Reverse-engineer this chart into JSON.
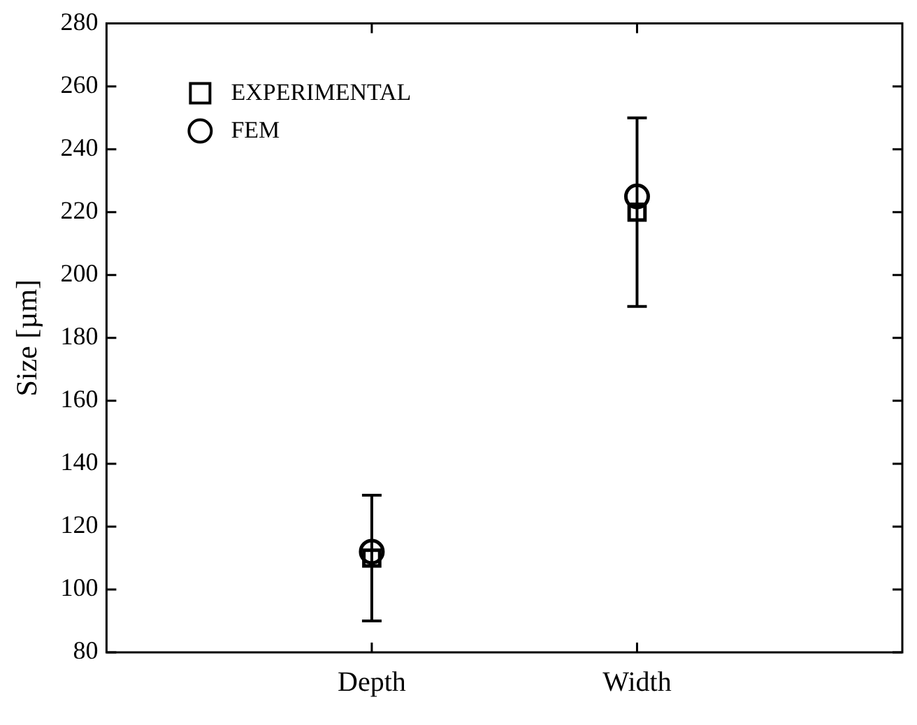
{
  "chart_data": {
    "type": "scatter",
    "ylabel": "Size [µm]",
    "categories": [
      "Depth",
      "Width"
    ],
    "series": [
      {
        "name": "EXPERIMENTAL",
        "color": "#000000",
        "marker": "square",
        "values": [
          110,
          220
        ],
        "errors": [
          20,
          30
        ]
      },
      {
        "name": "FEM",
        "color": "#000000",
        "marker": "circle",
        "values": [
          112,
          225
        ]
      }
    ],
    "ylim": [
      80,
      280
    ],
    "yticks": [
      80,
      100,
      120,
      140,
      160,
      180,
      200,
      220,
      240,
      260,
      280
    ],
    "grid": false,
    "legend": "top left"
  }
}
